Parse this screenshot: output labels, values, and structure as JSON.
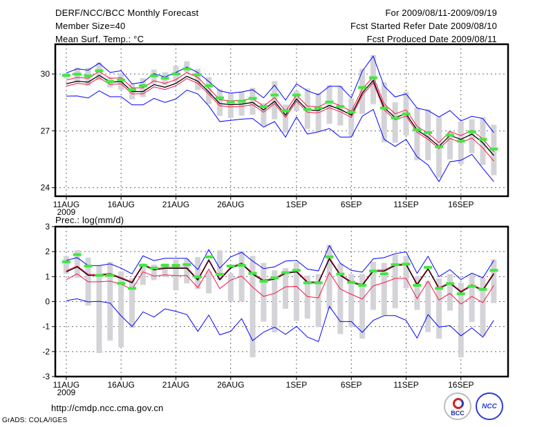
{
  "header": {
    "title": "DERF/NCC/BCC Monthly Forecast",
    "member_size": "Member Size=40",
    "variable": "Mean Surf. Temp.: °C",
    "period": "For 2009/08/11-2009/09/19",
    "started": "Fcst Started Refer Date 2009/08/10",
    "produced": "Fcst Produced Date 2009/08/11"
  },
  "footer": {
    "url": "http://cmdp.ncc.cma.gov.cn",
    "credit": "GrADS: COLA/IGES",
    "logo_left": "BCC",
    "logo_right": "NCC"
  },
  "colors": {
    "max_min": "#0000ff",
    "spread": "#ff1040",
    "mean": "#000000",
    "marker": "#40e840",
    "range": "#d4d4d8"
  },
  "chart_data": [
    {
      "type": "line",
      "title": "Mean Surf. Temp.: °C",
      "xlabel": "",
      "ylabel": "",
      "x_tick_labels": [
        "11AUG",
        "16AUG",
        "21AUG",
        "26AUG",
        "1SEP",
        "6SEP",
        "11SEP",
        "16SEP"
      ],
      "x_tick_days": [
        0,
        5,
        10,
        15,
        21,
        26,
        31,
        36
      ],
      "year_label": "2009",
      "y_ticks": [
        24,
        27,
        30
      ],
      "ylim": [
        23.55,
        31.57
      ],
      "xlim": [
        -1,
        40.3
      ],
      "grid": true,
      "days": 40,
      "series": [
        {
          "name": "range_high",
          "values": [
            30.05,
            30.33,
            30.33,
            30.61,
            29.84,
            30.02,
            29.48,
            29.78,
            30.23,
            30.09,
            30.43,
            30.67,
            30.27,
            29.84,
            29.2,
            28.99,
            29.07,
            29.27,
            28.46,
            29.62,
            28.38,
            29.11,
            29.23,
            29.01,
            29.41,
            29.38,
            28.71,
            30.27,
            31.0,
            29.56,
            28.5,
            29.05,
            28.22,
            28.13,
            27.73,
            26.98,
            27.49,
            27.61,
            27.71,
            27.32
          ]
        },
        {
          "name": "range_low",
          "values": [
            29.76,
            29.54,
            29.38,
            29.66,
            29.29,
            29.17,
            28.66,
            28.78,
            29.48,
            29.41,
            29.6,
            30.09,
            29.15,
            28.41,
            27.79,
            27.68,
            27.8,
            27.85,
            27.28,
            27.61,
            26.91,
            28.05,
            27.1,
            26.95,
            27.37,
            27.28,
            26.7,
            27.89,
            28.41,
            26.4,
            26.37,
            26.76,
            25.45,
            25.45,
            24.54,
            25.49,
            25.24,
            25.82,
            25.2,
            24.66
          ]
        },
        {
          "name": "max",
          "values": [
            30.05,
            30.27,
            30.2,
            30.57,
            30.08,
            30.17,
            29.48,
            29.56,
            30.02,
            29.84,
            30.08,
            30.37,
            30.08,
            29.6,
            29.11,
            28.99,
            29.05,
            29.17,
            28.74,
            29.41,
            28.62,
            29.48,
            29.11,
            28.9,
            29.35,
            29.35,
            28.74,
            30.15,
            30.94,
            29.35,
            28.79,
            28.95,
            28.2,
            28.07,
            27.73,
            28.07,
            27.52,
            27.77,
            27.65,
            26.91
          ]
        },
        {
          "name": "min",
          "values": [
            28.83,
            28.84,
            28.73,
            29.11,
            28.8,
            28.8,
            28.37,
            28.37,
            28.71,
            28.5,
            28.68,
            29.15,
            28.95,
            28.32,
            27.49,
            27.55,
            27.62,
            27.65,
            27.2,
            27.49,
            26.67,
            27.73,
            26.83,
            26.95,
            27.12,
            26.67,
            26.67,
            27.77,
            28.13,
            26.55,
            26.18,
            26.55,
            25.63,
            25.2,
            24.32,
            25.37,
            25.45,
            25.76,
            25.02,
            24.32
          ]
        },
        {
          "name": "spread_high",
          "values": [
            29.68,
            29.82,
            29.77,
            30.13,
            29.77,
            29.8,
            29.27,
            29.27,
            29.64,
            29.5,
            29.7,
            30.08,
            29.82,
            29.25,
            28.64,
            28.58,
            28.61,
            28.7,
            28.3,
            28.76,
            28.03,
            28.88,
            28.3,
            28.27,
            28.54,
            28.33,
            28.03,
            29.2,
            29.86,
            28.42,
            27.9,
            28.1,
            27.24,
            26.87,
            26.38,
            26.96,
            26.75,
            27.03,
            26.57,
            25.9
          ]
        },
        {
          "name": "spread_low",
          "values": [
            29.36,
            29.5,
            29.45,
            29.81,
            29.45,
            29.48,
            28.95,
            28.95,
            29.32,
            29.18,
            29.38,
            29.76,
            29.5,
            28.93,
            28.32,
            28.26,
            28.29,
            28.38,
            27.98,
            28.44,
            27.71,
            28.56,
            27.98,
            27.95,
            28.22,
            28.01,
            27.71,
            28.88,
            29.54,
            28.1,
            27.58,
            27.78,
            26.92,
            26.55,
            26.06,
            26.6,
            26.38,
            26.62,
            26.1,
            25.4
          ]
        },
        {
          "name": "mean",
          "values": [
            29.48,
            29.62,
            29.57,
            29.93,
            29.57,
            29.6,
            29.07,
            29.07,
            29.44,
            29.3,
            29.5,
            29.88,
            29.62,
            29.05,
            28.44,
            28.38,
            28.41,
            28.5,
            28.1,
            28.56,
            27.83,
            28.68,
            28.1,
            28.07,
            28.34,
            28.13,
            27.83,
            29.0,
            29.66,
            28.22,
            27.7,
            27.9,
            27.04,
            26.67,
            26.18,
            26.76,
            26.55,
            26.83,
            26.37,
            25.7
          ]
        },
        {
          "name": "marker",
          "values": [
            29.93,
            29.99,
            29.9,
            30.17,
            29.6,
            29.68,
            29.17,
            29.38,
            29.9,
            29.78,
            30.0,
            30.27,
            29.96,
            29.38,
            28.74,
            28.52,
            28.56,
            28.71,
            28.28,
            28.89,
            28.05,
            28.89,
            28.13,
            28.2,
            28.52,
            28.28,
            27.99,
            29.29,
            29.8,
            28.2,
            27.68,
            27.89,
            27.06,
            26.91,
            26.16,
            26.77,
            26.46,
            26.95,
            26.55,
            26.04
          ]
        }
      ]
    },
    {
      "type": "line",
      "title": "Prec.: log(mm/d)",
      "xlabel": "",
      "ylabel": "",
      "x_tick_labels": [
        "11AUG",
        "16AUG",
        "21AUG",
        "26AUG",
        "1SEP",
        "6SEP",
        "11SEP",
        "16SEP"
      ],
      "x_tick_days": [
        0,
        5,
        10,
        15,
        21,
        26,
        31,
        36
      ],
      "year_label": "2009",
      "y_ticks": [
        -3,
        -2,
        -1,
        0,
        1,
        2,
        3
      ],
      "ylim": [
        -3,
        3
      ],
      "xlim": [
        -1,
        40.3
      ],
      "grid": true,
      "days": 40,
      "series": [
        {
          "name": "range_high",
          "values": [
            1.82,
            2.06,
            1.76,
            1.45,
            1.59,
            1.21,
            0.93,
            1.53,
            1.48,
            1.53,
            1.67,
            1.71,
            1.78,
            1.22,
            2.05,
            1.13,
            2.03,
            1.83,
            1.55,
            1.25,
            1.34,
            1.57,
            1.04,
            1.1,
            2.27,
            1.53,
            1.1,
            1.1,
            1.59,
            1.55,
            1.9,
            1.83,
            1.02,
            0.82,
            0.93,
            1.1,
            0.76,
            1.11,
            0.95,
            1.69
          ]
        },
        {
          "name": "range_low",
          "values": [
            1.11,
            0.95,
            -0.16,
            -2.06,
            -1.56,
            -1.83,
            -1.05,
            0.67,
            0.86,
            0.98,
            0.45,
            0.73,
            0.5,
            0.33,
            0.86,
            0.0,
            0.0,
            -2.23,
            -0.8,
            -1.23,
            -0.29,
            -0.77,
            -0.68,
            -1.02,
            -0.31,
            -1.3,
            -1.02,
            -1.48,
            -0.33,
            -0.54,
            -0.27,
            0.53,
            -0.33,
            -1.22,
            -1.48,
            -0.36,
            -2.23,
            -0.82,
            -1.37,
            -0.06
          ]
        },
        {
          "name": "max",
          "values": [
            1.65,
            1.76,
            1.44,
            1.44,
            1.51,
            1.34,
            1.11,
            1.83,
            1.64,
            1.73,
            1.73,
            1.73,
            1.28,
            2.08,
            1.34,
            1.79,
            1.97,
            1.62,
            1.32,
            1.39,
            1.62,
            1.65,
            1.3,
            1.23,
            2.24,
            1.53,
            1.25,
            1.18,
            1.71,
            1.76,
            1.92,
            1.99,
            1.13,
            1.81,
            1.0,
            1.28,
            0.88,
            1.14,
            0.95,
            1.65
          ]
        },
        {
          "name": "min",
          "values": [
            0.04,
            0.11,
            -0.01,
            0.01,
            -0.06,
            -0.57,
            -1.0,
            -0.41,
            -0.62,
            -0.29,
            -0.39,
            -0.52,
            -1.19,
            -0.54,
            -1.33,
            -1.19,
            -0.68,
            -1.56,
            -1.22,
            -1.02,
            -1.31,
            -0.99,
            -1.42,
            -1.6,
            -0.19,
            -0.8,
            -0.8,
            -1.23,
            -0.75,
            -0.56,
            -0.56,
            -0.75,
            -1.46,
            -0.52,
            -1.02,
            -0.96,
            -1.37,
            -1.05,
            -1.42,
            -0.75
          ]
        },
        {
          "name": "spread_high",
          "values": [
            1.23,
            1.43,
            1.09,
            1.09,
            1.13,
            0.97,
            0.79,
            1.5,
            1.31,
            1.37,
            1.37,
            1.37,
            0.9,
            1.69,
            0.91,
            1.38,
            1.55,
            1.14,
            0.86,
            0.94,
            1.17,
            1.23,
            0.8,
            0.79,
            1.75,
            1.09,
            0.8,
            0.69,
            1.26,
            1.26,
            1.48,
            1.52,
            0.71,
            1.34,
            0.56,
            0.77,
            0.42,
            0.68,
            0.49,
            1.15
          ]
        },
        {
          "name": "spread_low",
          "values": [
            0.88,
            1.11,
            0.79,
            0.79,
            0.82,
            0.7,
            0.49,
            1.19,
            1.02,
            1.07,
            1.04,
            1.04,
            0.56,
            1.3,
            0.52,
            0.86,
            1.02,
            0.58,
            0.21,
            0.33,
            0.59,
            0.61,
            0.2,
            0.15,
            1.16,
            0.5,
            0.29,
            0.1,
            0.63,
            0.76,
            0.93,
            0.93,
            0.12,
            0.82,
            0.06,
            0.33,
            -0.1,
            0.21,
            -0.04,
            0.65
          ]
        },
        {
          "name": "mean",
          "values": [
            1.19,
            1.39,
            1.05,
            1.05,
            1.09,
            0.93,
            0.75,
            1.46,
            1.27,
            1.33,
            1.33,
            1.33,
            0.86,
            1.65,
            0.87,
            1.34,
            1.51,
            1.1,
            0.82,
            0.9,
            1.13,
            1.19,
            0.76,
            0.75,
            1.71,
            1.05,
            0.76,
            0.65,
            1.22,
            1.22,
            1.44,
            1.48,
            0.67,
            1.3,
            0.52,
            0.73,
            0.38,
            0.64,
            0.45,
            1.11
          ]
        },
        {
          "name": "marker",
          "values": [
            1.59,
            1.88,
            1.42,
            1.05,
            1.05,
            0.73,
            0.53,
            1.45,
            1.34,
            1.45,
            1.45,
            1.48,
            0.99,
            1.79,
            1.09,
            1.42,
            1.45,
            1.13,
            0.81,
            0.95,
            1.16,
            1.25,
            0.75,
            0.75,
            1.79,
            1.1,
            0.77,
            0.65,
            1.22,
            1.11,
            1.48,
            1.5,
            0.65,
            1.37,
            0.53,
            0.72,
            0.31,
            0.61,
            0.49,
            1.25
          ]
        }
      ]
    }
  ]
}
